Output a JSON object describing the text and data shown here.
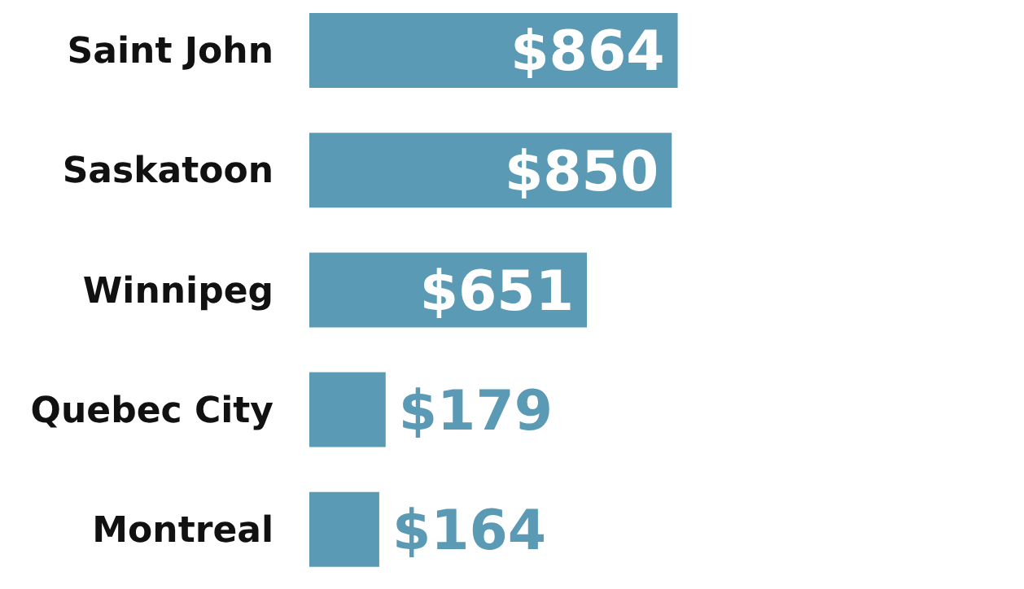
{
  "chart_data": {
    "type": "bar",
    "orientation": "horizontal",
    "categories": [
      "Saint John",
      "Saskatoon",
      "Winnipeg",
      "Quebec City",
      "Montreal"
    ],
    "values": [
      864,
      850,
      651,
      179,
      164
    ],
    "color": "#5b9ab5",
    "value_labels": [
      "$864",
      "$850",
      "$651",
      "$179",
      "$164"
    ]
  }
}
